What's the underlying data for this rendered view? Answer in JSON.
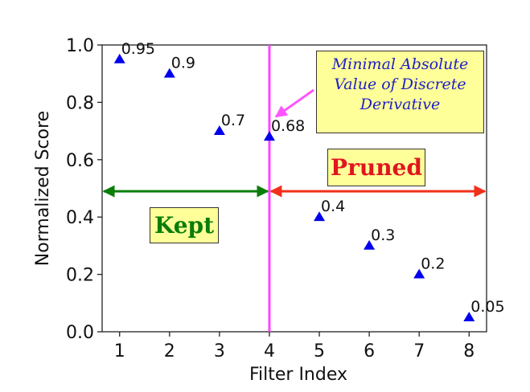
{
  "chart_data": {
    "type": "scatter",
    "xlabel": "Filter Index",
    "ylabel": "Normalized Score",
    "xlim": [
      0.65,
      8.35
    ],
    "ylim": [
      0.0,
      1.0
    ],
    "x_ticks": [
      "1",
      "2",
      "3",
      "4",
      "5",
      "6",
      "7",
      "8"
    ],
    "y_ticks": [
      "0.0",
      "0.2",
      "0.4",
      "0.6",
      "0.8",
      "1.0"
    ],
    "grid": false,
    "marker": "triangle",
    "marker_color": "#0000ee",
    "points": [
      {
        "x": 1,
        "y": 0.95,
        "label": "0.95"
      },
      {
        "x": 2,
        "y": 0.9,
        "label": "0.9"
      },
      {
        "x": 3,
        "y": 0.7,
        "label": "0.7"
      },
      {
        "x": 4,
        "y": 0.68,
        "label": "0.68"
      },
      {
        "x": 5,
        "y": 0.4,
        "label": "0.4"
      },
      {
        "x": 6,
        "y": 0.3,
        "label": "0.3"
      },
      {
        "x": 7,
        "y": 0.2,
        "label": "0.2"
      },
      {
        "x": 8,
        "y": 0.05,
        "label": "0.05"
      }
    ],
    "split": {
      "x": 4,
      "color": "#ff44ff"
    },
    "kept_arrow": {
      "x_from": 0.65,
      "x_to": 4,
      "y": 0.49,
      "color": "#0a7d0a"
    },
    "pruned_arrow": {
      "x_from": 4,
      "x_to": 8.35,
      "y": 0.49,
      "color": "#f0301a"
    },
    "pointer_color": "#ff55ff"
  },
  "annotations": {
    "kept": "Kept",
    "pruned": "Pruned",
    "note_line1": "Minimal Absolute",
    "note_line2": "Value of Discrete",
    "note_line3": "Derivative"
  }
}
